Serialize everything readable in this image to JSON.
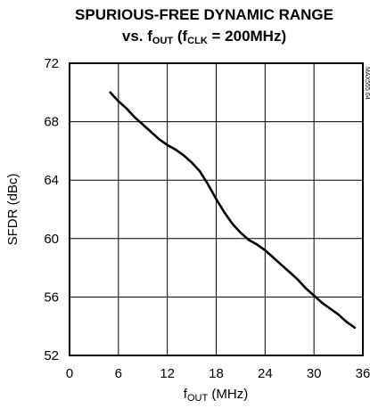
{
  "chart_data": {
    "type": "line",
    "title_line1": "SPURIOUS-FREE DYNAMIC RANGE",
    "title_line2": {
      "pre": "vs. f",
      "sub1": "OUT",
      "mid": " (f",
      "sub2": "CLK",
      "post": " = 200MHz)"
    },
    "xlabel": {
      "pre": "f",
      "sub": "OUT",
      "post": " (MHz)"
    },
    "ylabel": "SFDR (dBc)",
    "xlim": [
      0,
      36
    ],
    "ylim": [
      52,
      72
    ],
    "x_ticks": [
      "0",
      "6",
      "12",
      "18",
      "24",
      "30",
      "36"
    ],
    "y_ticks": [
      "52",
      "56",
      "60",
      "64",
      "68",
      "72"
    ],
    "grid": true,
    "side_mark": "MAX555 04",
    "series": [
      {
        "x": [
          5,
          6,
          7,
          8,
          9,
          10,
          11,
          12,
          13,
          14,
          15,
          16,
          17,
          18,
          19,
          20,
          21,
          22,
          23,
          24,
          25,
          26,
          27,
          28,
          29,
          30,
          31,
          32,
          33,
          34,
          35
        ],
        "values": [
          70.0,
          69.4,
          68.9,
          68.3,
          67.8,
          67.3,
          66.8,
          66.4,
          66.1,
          65.7,
          65.2,
          64.6,
          63.7,
          62.7,
          61.8,
          61.0,
          60.4,
          59.9,
          59.6,
          59.2,
          58.7,
          58.2,
          57.7,
          57.2,
          56.6,
          56.1,
          55.6,
          55.2,
          54.8,
          54.3,
          53.9
        ],
        "color": "#000000"
      }
    ]
  }
}
